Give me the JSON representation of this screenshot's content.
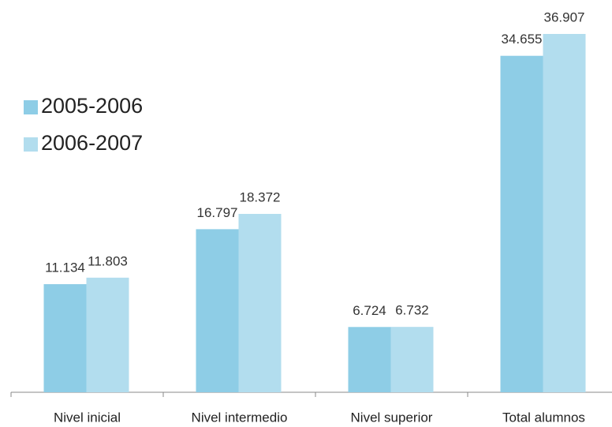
{
  "chart_data": {
    "type": "bar",
    "categories": [
      "Nivel inicial",
      "Nivel intermedio",
      "Nivel superior",
      "Total alumnos"
    ],
    "series": [
      {
        "name": "2005-2006",
        "color": "#8ecde6",
        "values": [
          11134,
          16797,
          6724,
          34655
        ],
        "value_labels": [
          "11.134",
          "16.797",
          "6.724",
          "34.655"
        ]
      },
      {
        "name": "2006-2007",
        "color": "#b2ddee",
        "values": [
          11803,
          18372,
          6732,
          36907
        ],
        "value_labels": [
          "11.803",
          "18.372",
          "6.732",
          "36.907"
        ]
      }
    ],
    "legend": "left",
    "grid": false
  }
}
